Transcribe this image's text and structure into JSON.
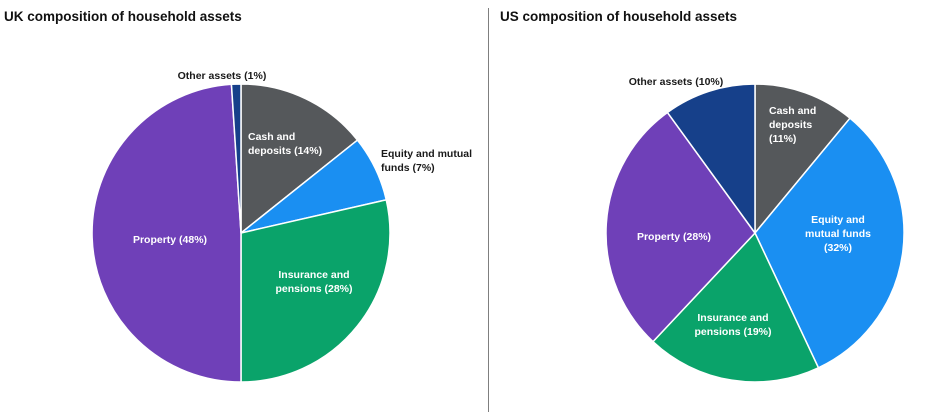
{
  "chart_data": [
    {
      "type": "pie",
      "title": "UK composition of household assets",
      "start_angle_deg": 0,
      "slices": [
        {
          "label": [
            "Cash and",
            "deposits (14%)"
          ],
          "value": 14,
          "color": "#55585b",
          "label_color": "#ffffff"
        },
        {
          "label": [
            "Equity and mutual",
            "funds (7%)"
          ],
          "value": 7,
          "color": "#1a8ff2",
          "label_color": "#1a1a1a"
        },
        {
          "label": [
            "Insurance and",
            "pensions (28%)"
          ],
          "value": 28,
          "color": "#0aa36a",
          "label_color": "#ffffff"
        },
        {
          "label": [
            "Property (48%)"
          ],
          "value": 48,
          "color": "#6f40b8",
          "label_color": "#ffffff"
        },
        {
          "label": [
            "Other assets (1%)"
          ],
          "value": 1,
          "color": "#16408a",
          "label_color": "#1a1a1a"
        }
      ]
    },
    {
      "type": "pie",
      "title": "US composition of household assets",
      "start_angle_deg": 0,
      "slices": [
        {
          "label": [
            "Cash and",
            "deposits",
            "(11%)"
          ],
          "value": 11,
          "color": "#55585b",
          "label_color": "#ffffff"
        },
        {
          "label": [
            "Equity and",
            "mutual funds",
            "(32%)"
          ],
          "value": 32,
          "color": "#1a8ff2",
          "label_color": "#ffffff"
        },
        {
          "label": [
            "Insurance and",
            "pensions (19%)"
          ],
          "value": 19,
          "color": "#0aa36a",
          "label_color": "#ffffff"
        },
        {
          "label": [
            "Property (28%)"
          ],
          "value": 28,
          "color": "#6f40b8",
          "label_color": "#ffffff"
        },
        {
          "label": [
            "Other assets (10%)"
          ],
          "value": 10,
          "color": "#16408a",
          "label_color": "#1a1a1a"
        }
      ]
    }
  ]
}
